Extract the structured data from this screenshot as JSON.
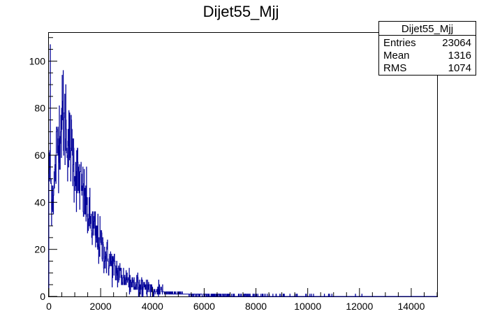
{
  "chart_data": {
    "type": "histogram",
    "title": "Dijet55_Mjj",
    "xlabel": "",
    "ylabel": "",
    "xlim": [
      0,
      15000
    ],
    "ylim": [
      0,
      112
    ],
    "x_ticks": [
      0,
      2000,
      4000,
      6000,
      8000,
      10000,
      12000,
      14000
    ],
    "y_ticks": [
      0,
      20,
      40,
      60,
      80,
      100
    ],
    "line_color": "#000099",
    "stats": {
      "title": "Dijet55_Mjj",
      "rows": [
        {
          "label": "Entries",
          "value": "23064"
        },
        {
          "label": "Mean",
          "value": "1316"
        },
        {
          "label": "RMS",
          "value": "1074"
        }
      ]
    },
    "envelope": {
      "x": [
        0,
        100,
        200,
        300,
        400,
        500,
        600,
        700,
        800,
        900,
        1000,
        1200,
        1400,
        1600,
        1800,
        2000,
        2200,
        2400,
        2600,
        2800,
        3000,
        3200,
        3400,
        3600,
        3800,
        4000,
        4200,
        4400,
        4600,
        4800,
        5000,
        5400,
        5800,
        6200,
        6600,
        7000,
        7600,
        8200,
        9000,
        10000,
        11000,
        12000,
        13000,
        14000,
        15000
      ],
      "y": [
        55,
        45,
        45,
        62,
        70,
        75,
        72,
        68,
        65,
        62,
        55,
        48,
        40,
        32,
        26,
        22,
        17,
        14,
        11,
        9,
        7,
        6,
        5,
        4,
        3.5,
        3,
        2.5,
        2,
        1.7,
        1.4,
        1.2,
        0.9,
        0.7,
        0.5,
        0.4,
        0.3,
        0.2,
        0.15,
        0.1,
        0.06,
        0.04,
        0.03,
        0.02,
        0.01,
        0
      ]
    },
    "peaks": [
      {
        "x": 50,
        "y": 107
      },
      {
        "x": 550,
        "y": 96
      },
      {
        "x": 650,
        "y": 90
      }
    ]
  }
}
